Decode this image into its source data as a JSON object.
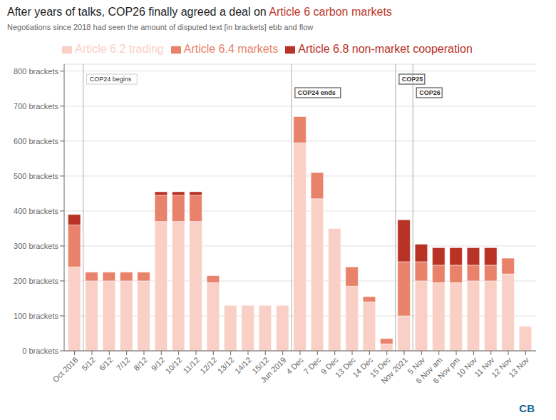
{
  "chart_data": {
    "type": "bar",
    "stacked": true,
    "grid": true,
    "legend": "top",
    "title": [
      {
        "text": "After years of talks, COP26 finally agreed a deal on ",
        "color": "#222222"
      },
      {
        "text": "Article 6 carbon markets",
        "color": "#c0392b"
      }
    ],
    "subtitle": "Negotiations since 2018 had seen the amount of disputed text [in brackets] ebb and flow",
    "categories": [
      "Oct 2018",
      "5/12",
      "6/12",
      "7/12",
      "8/12",
      "9/12",
      "10/12",
      "11/12",
      "12/12",
      "13/12",
      "14/12",
      "15/12",
      "Jun 2019",
      "4 Dec",
      "7 Dec",
      "9 Dec",
      "13 Dec",
      "14 Dec",
      "15 Dec",
      "Nov 2021",
      "5 Nov",
      "6 Nov am",
      "6 Nov pm",
      "10 Nov",
      "11 Nov",
      "12 Nov",
      "13 Nov"
    ],
    "series": [
      {
        "name": "Article 6.2 trading",
        "color": "#f9cfc6",
        "values": [
          240,
          200,
          200,
          200,
          200,
          370,
          370,
          370,
          195,
          130,
          130,
          130,
          130,
          595,
          435,
          350,
          185,
          140,
          20,
          100,
          200,
          195,
          195,
          200,
          200,
          220,
          70
        ]
      },
      {
        "name": "Article 6.4 markets",
        "color": "#e8826a",
        "values": [
          120,
          25,
          25,
          25,
          25,
          75,
          75,
          75,
          20,
          0,
          0,
          0,
          0,
          75,
          75,
          0,
          55,
          15,
          15,
          155,
          55,
          50,
          50,
          45,
          45,
          45,
          0
        ]
      },
      {
        "name": "Article 6.8 non-market cooperation",
        "color": "#b83226",
        "values": [
          30,
          0,
          0,
          0,
          0,
          10,
          10,
          10,
          0,
          0,
          0,
          0,
          0,
          0,
          0,
          0,
          0,
          0,
          0,
          120,
          50,
          50,
          50,
          50,
          50,
          0,
          0
        ]
      }
    ],
    "ylim": [
      0,
      820
    ],
    "yticks": [
      {
        "value": 0,
        "label": "0 brackets"
      },
      {
        "value": 100,
        "label": "100 brackets"
      },
      {
        "value": 200,
        "label": "200 brackets"
      },
      {
        "value": 300,
        "label": "300 brackets"
      },
      {
        "value": 400,
        "label": "400 brackets"
      },
      {
        "value": 500,
        "label": "500 brackets"
      },
      {
        "value": 600,
        "label": "600 brackets"
      },
      {
        "value": 700,
        "label": "700 brackets"
      },
      {
        "value": 800,
        "label": "800 brackets"
      }
    ],
    "annotations": [
      {
        "text": "COP24 begins",
        "between": [
          "Oct 2018",
          "5/12"
        ],
        "bold": false,
        "color": "#aaaaaa"
      },
      {
        "text": "COP24 ends",
        "between": [
          "Jun 2019",
          "4 Dec"
        ],
        "bold": true,
        "color": "#555555"
      },
      {
        "text": "COP25",
        "between": [
          "15 Dec",
          "Nov 2021"
        ],
        "bold": true,
        "color": "#555555"
      },
      {
        "text": "COP26",
        "between": [
          "Nov 2021",
          "5 Nov"
        ],
        "bold": true,
        "color": "#555555"
      }
    ],
    "watermark": {
      "text": "CB",
      "color": "#1a6496"
    }
  }
}
